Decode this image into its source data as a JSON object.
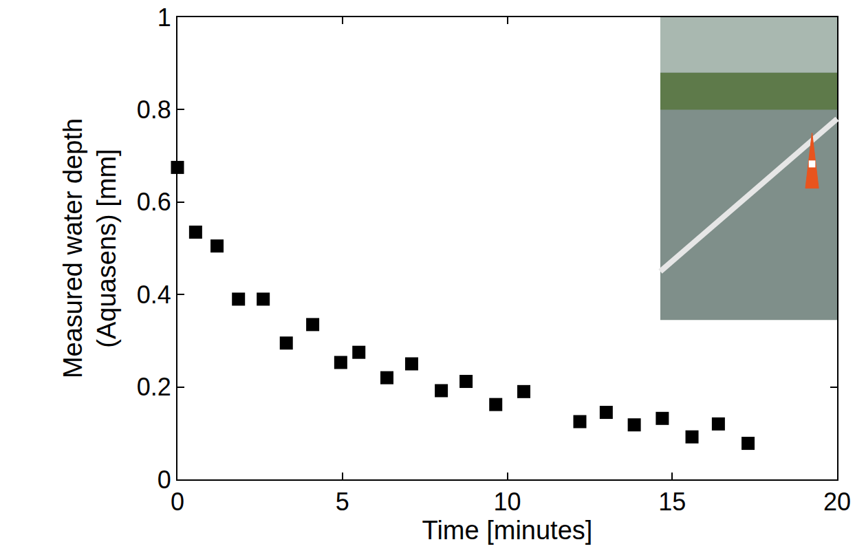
{
  "chart_data": {
    "type": "scatter",
    "x_label": "Time [minutes]",
    "y_label": "Measured water depth (Aquasens) [mm]",
    "x": [
      0,
      0.55,
      1.2,
      1.85,
      2.6,
      3.3,
      4.1,
      4.95,
      5.5,
      6.35,
      7.1,
      8.0,
      8.75,
      9.65,
      10.5,
      12.2,
      13.0,
      13.85,
      14.7,
      15.6,
      16.4,
      17.3
    ],
    "values": [
      0.675,
      0.535,
      0.505,
      0.39,
      0.39,
      0.295,
      0.335,
      0.253,
      0.275,
      0.22,
      0.25,
      0.192,
      0.212,
      0.162,
      0.19,
      0.125,
      0.145,
      0.118,
      0.132,
      0.092,
      0.12,
      0.078
    ],
    "color": "#000000",
    "marker": "square",
    "xlim": [
      0,
      20
    ],
    "xticks": [
      0,
      5,
      10,
      15,
      20
    ],
    "ylim": [
      0,
      1
    ],
    "yticks": [
      0,
      0.2,
      0.4,
      0.6,
      0.8,
      1
    ],
    "grid": false
  }
}
